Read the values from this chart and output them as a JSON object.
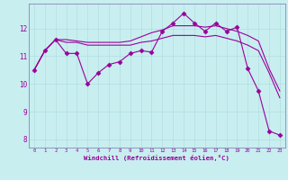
{
  "background_color": "#c8eef0",
  "grid_color": "#b0dde0",
  "line_color": "#990099",
  "xlabel": "Windchill (Refroidissement éolien,°C)",
  "ylabel_ticks": [
    8,
    9,
    10,
    11,
    12
  ],
  "xlim": [
    -0.5,
    23.5
  ],
  "ylim": [
    7.7,
    12.9
  ],
  "series1_x": [
    0,
    1,
    2,
    3,
    4,
    5,
    6,
    7,
    8,
    9,
    10,
    11,
    12,
    13,
    14,
    15,
    16,
    17,
    18,
    19,
    20,
    21,
    22,
    23
  ],
  "series1_y": [
    10.5,
    11.2,
    11.6,
    11.1,
    11.1,
    10.0,
    10.4,
    10.7,
    10.8,
    11.1,
    11.2,
    11.15,
    11.9,
    12.2,
    12.55,
    12.2,
    11.9,
    12.2,
    11.9,
    12.05,
    10.55,
    9.75,
    8.3,
    8.15
  ],
  "series2_x": [
    0,
    1,
    2,
    3,
    4,
    5,
    6,
    7,
    8,
    9,
    10,
    11,
    12,
    13,
    14,
    15,
    16,
    17,
    18,
    19,
    20,
    21,
    22,
    23
  ],
  "series2_y": [
    10.5,
    11.2,
    11.6,
    11.6,
    11.55,
    11.5,
    11.5,
    11.5,
    11.5,
    11.55,
    11.7,
    11.85,
    11.95,
    12.1,
    12.1,
    12.1,
    12.05,
    12.1,
    12.0,
    11.9,
    11.75,
    11.55,
    10.55,
    9.75
  ],
  "series3_x": [
    0,
    1,
    2,
    3,
    4,
    5,
    6,
    7,
    8,
    9,
    10,
    11,
    12,
    13,
    14,
    15,
    16,
    17,
    18,
    19,
    20,
    21,
    22,
    23
  ],
  "series3_y": [
    10.5,
    11.2,
    11.6,
    11.5,
    11.5,
    11.4,
    11.4,
    11.4,
    11.4,
    11.4,
    11.5,
    11.55,
    11.65,
    11.75,
    11.75,
    11.75,
    11.7,
    11.75,
    11.65,
    11.55,
    11.4,
    11.2,
    10.4,
    9.5
  ]
}
